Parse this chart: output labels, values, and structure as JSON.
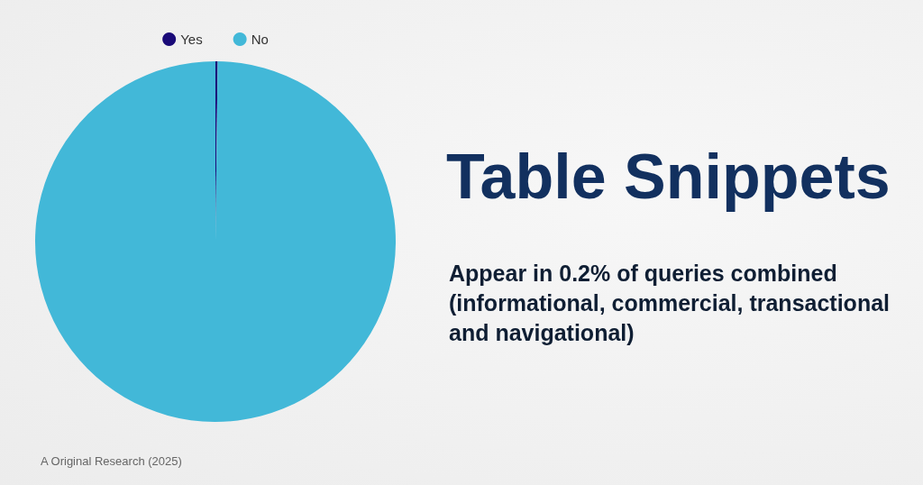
{
  "chart_data": {
    "type": "pie",
    "title": "Table Snippets",
    "subtitle": "Appear in 0.2% of queries combined (informational, commercial, transactional and navigational)",
    "categories": [
      "Yes",
      "No"
    ],
    "values": [
      0.2,
      99.8
    ],
    "colors": [
      "#1a0a78",
      "#42b8d8"
    ],
    "legend": "top",
    "annotations": [
      "A Original Research (2025)"
    ]
  }
}
